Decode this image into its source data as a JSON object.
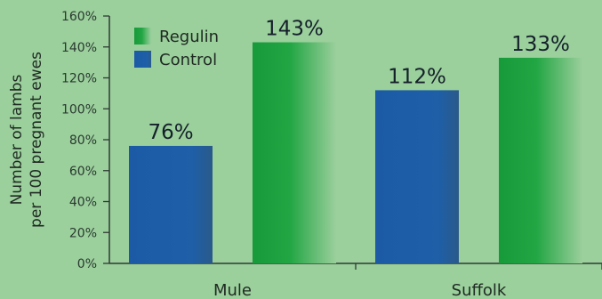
{
  "chart_data": {
    "type": "bar",
    "categories": [
      "Mule",
      "Suffolk"
    ],
    "series": [
      {
        "name": "Control",
        "values": [
          76,
          112
        ],
        "labels": [
          "76%",
          "112%"
        ]
      },
      {
        "name": "Regulin",
        "values": [
          143,
          133
        ],
        "labels": [
          "143%",
          "133%"
        ]
      }
    ],
    "ylabel_lines": [
      "Number of lambs",
      "per 100 pregnant ewes"
    ],
    "ylim": [
      0,
      160
    ],
    "yticks": [
      0,
      20,
      40,
      60,
      80,
      100,
      120,
      140,
      160
    ],
    "ytick_labels": [
      "0%",
      "20%",
      "40%",
      "60%",
      "80%",
      "100%",
      "120%",
      "140%",
      "160%"
    ],
    "legend": [
      {
        "name": "Regulin",
        "color": "#1ea040"
      },
      {
        "name": "Control",
        "color": "#1f5fa8"
      }
    ],
    "legend_position": "top-left",
    "colors": {
      "Control": "#1f5fa8",
      "Regulin": "#1ea040",
      "background": "#9bcf9c"
    },
    "grid": false
  }
}
